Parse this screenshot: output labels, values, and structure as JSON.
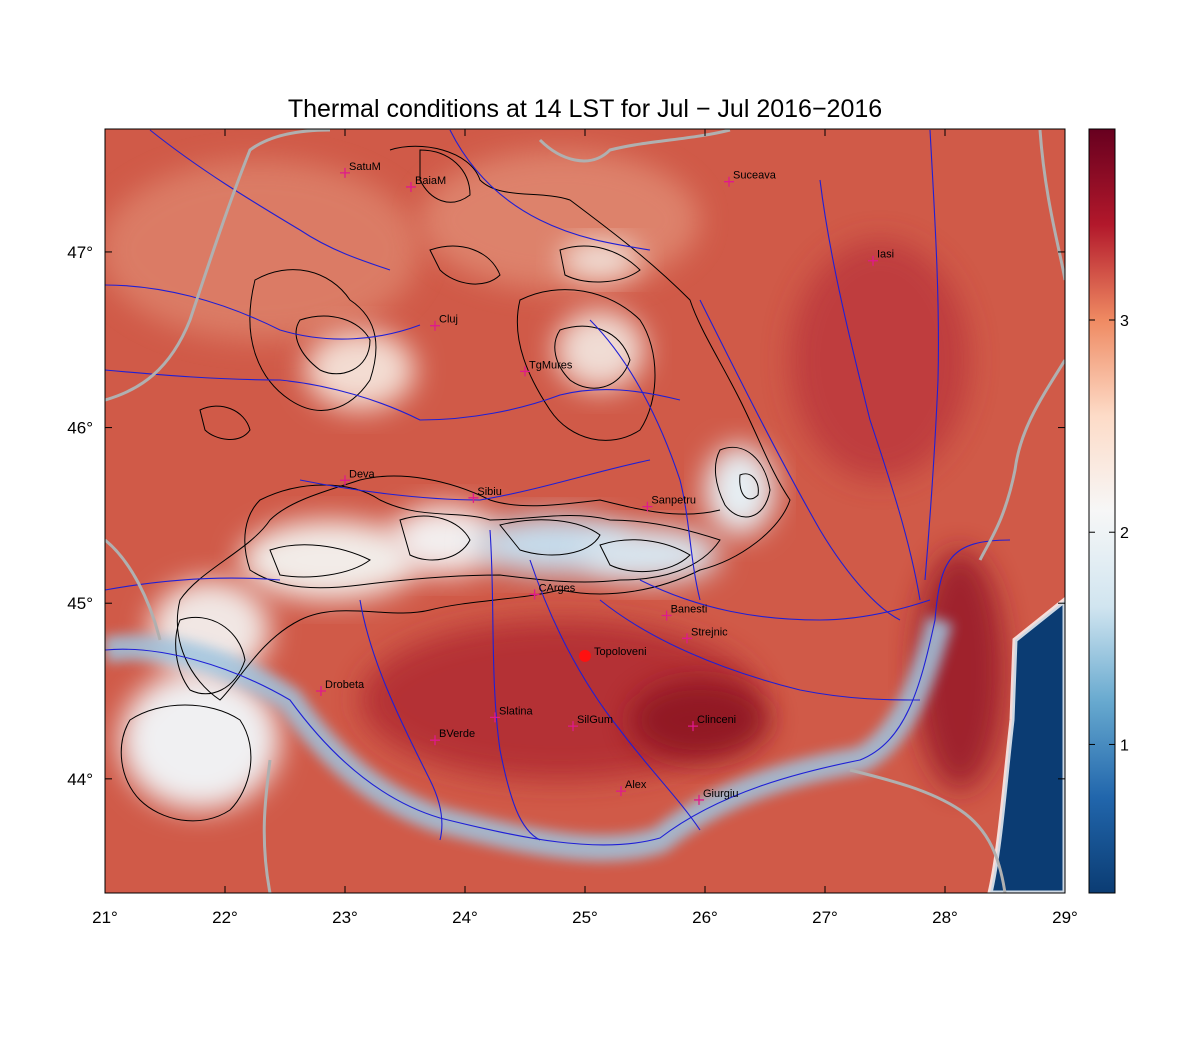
{
  "title": "Thermal conditions at 14 LST for Jul − Jul  2016−2016",
  "map": {
    "lon_range": [
      21,
      29
    ],
    "lat_range": [
      43.35,
      47.7
    ],
    "lon_ticks": [
      {
        "value": 21,
        "label": "21°"
      },
      {
        "value": 22,
        "label": "22°"
      },
      {
        "value": 23,
        "label": "23°"
      },
      {
        "value": 24,
        "label": "24°"
      },
      {
        "value": 25,
        "label": "25°"
      },
      {
        "value": 26,
        "label": "26°"
      },
      {
        "value": 27,
        "label": "27°"
      },
      {
        "value": 28,
        "label": "28°"
      },
      {
        "value": 29,
        "label": "29°"
      }
    ],
    "lat_ticks": [
      {
        "value": 44,
        "label": "44°"
      },
      {
        "value": 45,
        "label": "45°"
      },
      {
        "value": 46,
        "label": "46°"
      },
      {
        "value": 47,
        "label": "47°"
      }
    ],
    "colors": {
      "hot": "#cc4b3f",
      "very_hot": "#9e1b2b",
      "mild": "#ecb49c",
      "cool": "#e9f0f5",
      "cold_sea": "#0b3c73",
      "rivers": "#1f1fd6",
      "borders": "#b0b0b0",
      "contours": "#000000",
      "city_marker": "#e0198c",
      "highlight": "#ff1010"
    },
    "cities": [
      {
        "name": "SatuM",
        "lon": 23.0,
        "lat": 47.45
      },
      {
        "name": "BaiaM",
        "lon": 23.55,
        "lat": 47.37
      },
      {
        "name": "Suceava",
        "lon": 26.2,
        "lat": 47.4
      },
      {
        "name": "Iasi",
        "lon": 27.4,
        "lat": 46.95
      },
      {
        "name": "Cluj",
        "lon": 23.75,
        "lat": 46.58
      },
      {
        "name": "TgMures",
        "lon": 24.5,
        "lat": 46.32
      },
      {
        "name": "Deva",
        "lon": 23.0,
        "lat": 45.7
      },
      {
        "name": "Sibiu",
        "lon": 24.07,
        "lat": 45.6
      },
      {
        "name": "Sanpetru",
        "lon": 25.52,
        "lat": 45.55
      },
      {
        "name": "CArges",
        "lon": 24.58,
        "lat": 45.05
      },
      {
        "name": "Banesti",
        "lon": 25.68,
        "lat": 44.93
      },
      {
        "name": "Strejnic",
        "lon": 25.85,
        "lat": 44.8
      },
      {
        "name": "Drobeta",
        "lon": 22.8,
        "lat": 44.5
      },
      {
        "name": "Slatina",
        "lon": 24.25,
        "lat": 44.35
      },
      {
        "name": "SilGum",
        "lon": 24.9,
        "lat": 44.3
      },
      {
        "name": "Clinceni",
        "lon": 25.9,
        "lat": 44.3
      },
      {
        "name": "BVerde",
        "lon": 23.75,
        "lat": 44.22
      },
      {
        "name": "Alex",
        "lon": 25.3,
        "lat": 43.93
      },
      {
        "name": "Giurgiu",
        "lon": 25.95,
        "lat": 43.88
      }
    ],
    "highlight_city": {
      "name": "Topoloveni",
      "lon": 25.0,
      "lat": 44.7
    }
  },
  "colorbar": {
    "range": [
      0.3,
      3.9
    ],
    "ticks": [
      {
        "value": 1,
        "label": "1"
      },
      {
        "value": 2,
        "label": "2"
      },
      {
        "value": 3,
        "label": "3"
      }
    ],
    "stops": [
      "#0b3c73",
      "#2166ac",
      "#67a9cf",
      "#d1e5f0",
      "#f7f7f7",
      "#fddbc7",
      "#ef8a62",
      "#b2182b",
      "#67001f"
    ]
  }
}
